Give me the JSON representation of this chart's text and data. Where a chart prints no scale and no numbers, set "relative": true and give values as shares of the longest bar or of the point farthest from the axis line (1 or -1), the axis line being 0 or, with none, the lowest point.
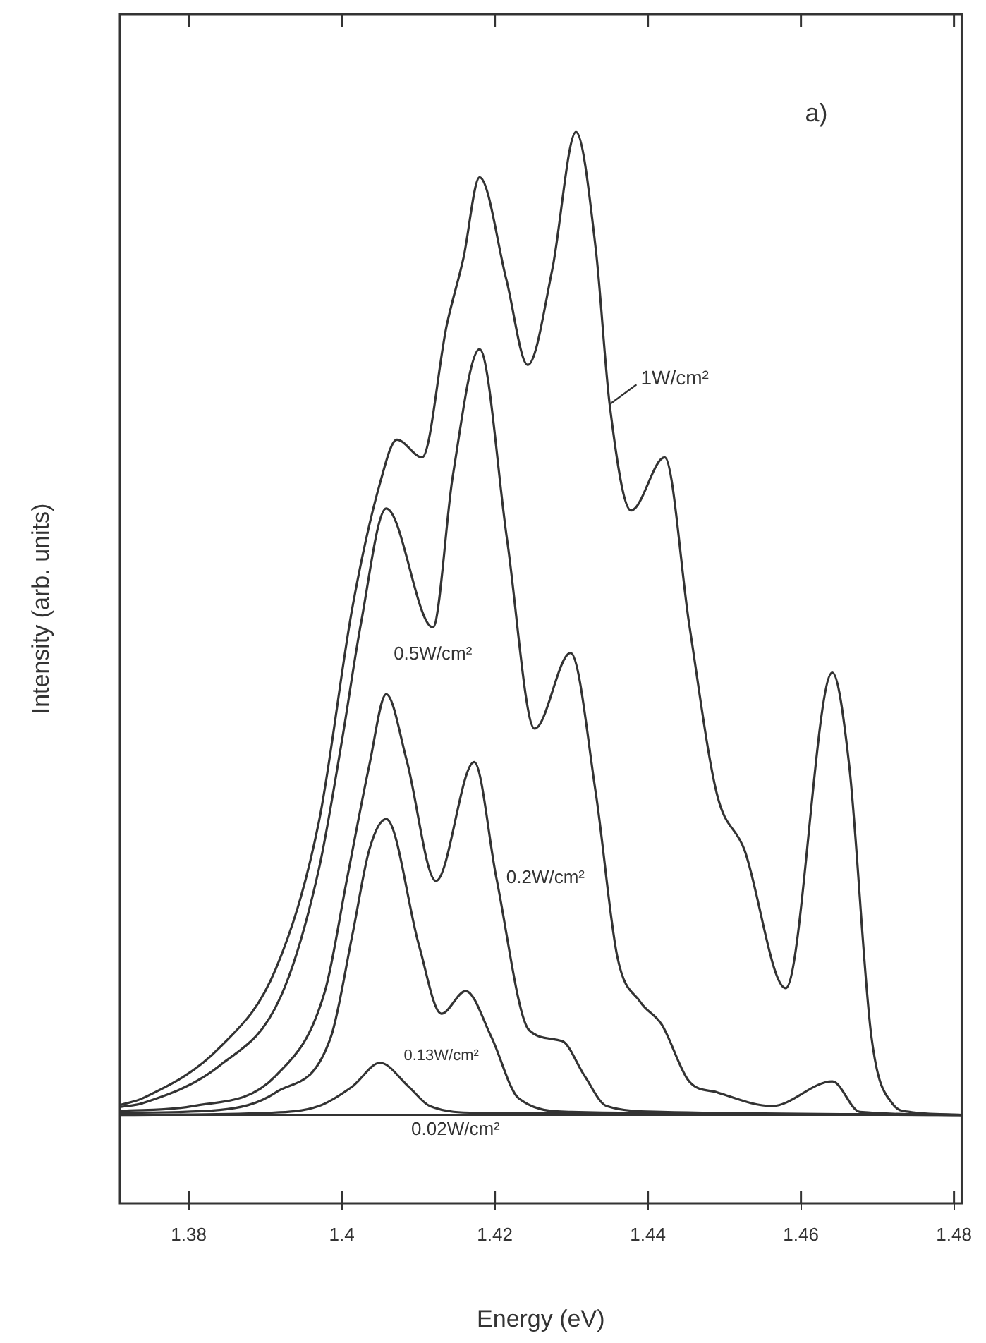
{
  "chart_data": {
    "type": "line",
    "relative": true,
    "xlabel": "Energy (eV)",
    "ylabel": "Intensity (arb. units)",
    "annotations": [
      "a)"
    ],
    "xlim": [
      1.371,
      1.481
    ],
    "xticks": [
      1.38,
      1.4,
      1.42,
      1.44,
      1.46,
      1.48
    ],
    "legend": false,
    "marker": "none",
    "line_style": "solid",
    "grid": false,
    "series": [
      {
        "name": "1W/cm²",
        "color": "#333333",
        "x": [
          1.371,
          1.374,
          1.3841,
          1.3914,
          1.397,
          1.4014,
          1.405,
          1.4072,
          1.4105,
          1.4137,
          1.4159,
          1.418,
          1.4215,
          1.4243,
          1.4275,
          1.4306,
          1.4332,
          1.435,
          1.4378,
          1.4422,
          1.4454,
          1.449,
          1.4526,
          1.458,
          1.4641,
          1.4663,
          1.4692,
          1.472,
          1.4742,
          1.481
        ],
        "values": [
          0.01,
          0.017,
          0.069,
          0.149,
          0.298,
          0.517,
          0.643,
          0.687,
          0.669,
          0.803,
          0.872,
          0.954,
          0.85,
          0.763,
          0.86,
          1.0,
          0.88,
          0.723,
          0.615,
          0.669,
          0.499,
          0.327,
          0.27,
          0.129,
          0.45,
          0.356,
          0.08,
          0.011,
          0.003,
          0
        ]
      },
      {
        "name": "0.5W/cm²",
        "color": "#333333",
        "x": [
          1.371,
          1.374,
          1.384,
          1.392,
          1.397,
          1.4,
          1.4025,
          1.4058,
          1.4119,
          1.4145,
          1.418,
          1.4216,
          1.4252,
          1.4299,
          1.4332,
          1.436,
          1.439,
          1.4418,
          1.4454,
          1.449,
          1.4562,
          1.4641,
          1.4677,
          1.481
        ],
        "values": [
          0.008,
          0.012,
          0.05,
          0.12,
          0.25,
          0.38,
          0.5,
          0.617,
          0.496,
          0.65,
          0.779,
          0.585,
          0.393,
          0.47,
          0.327,
          0.161,
          0.115,
          0.092,
          0.034,
          0.023,
          0.009,
          0.034,
          0.003,
          0
        ]
      },
      {
        "name": "0.2W/cm²",
        "color": "#333333",
        "x": [
          1.371,
          1.3805,
          1.3914,
          1.3978,
          1.4007,
          1.4036,
          1.4058,
          1.4085,
          1.4123,
          1.4173,
          1.4202,
          1.4245,
          1.4288,
          1.4317,
          1.4346,
          1.4418,
          1.481
        ],
        "values": [
          0.004,
          0.009,
          0.04,
          0.126,
          0.241,
          0.356,
          0.428,
          0.36,
          0.238,
          0.359,
          0.241,
          0.086,
          0.075,
          0.04,
          0.009,
          0.003,
          0
        ]
      },
      {
        "name": "0.13W/cm²",
        "color": "#333333",
        "x": [
          1.371,
          1.384,
          1.3914,
          1.3986,
          1.4014,
          1.4036,
          1.4058,
          1.4101,
          1.413,
          1.4162,
          1.4195,
          1.4231,
          1.43,
          1.481
        ],
        "values": [
          0.002,
          0.005,
          0.023,
          0.08,
          0.184,
          0.27,
          0.301,
          0.172,
          0.103,
          0.126,
          0.08,
          0.017,
          0.003,
          0
        ]
      },
      {
        "name": "0.02W/cm²",
        "color": "#333333",
        "x": [
          1.371,
          1.39,
          1.397,
          1.4014,
          1.405,
          1.4087,
          1.4115,
          1.418,
          1.481
        ],
        "values": [
          0,
          0.002,
          0.009,
          0.029,
          0.053,
          0.029,
          0.009,
          0.002,
          0
        ]
      }
    ]
  }
}
